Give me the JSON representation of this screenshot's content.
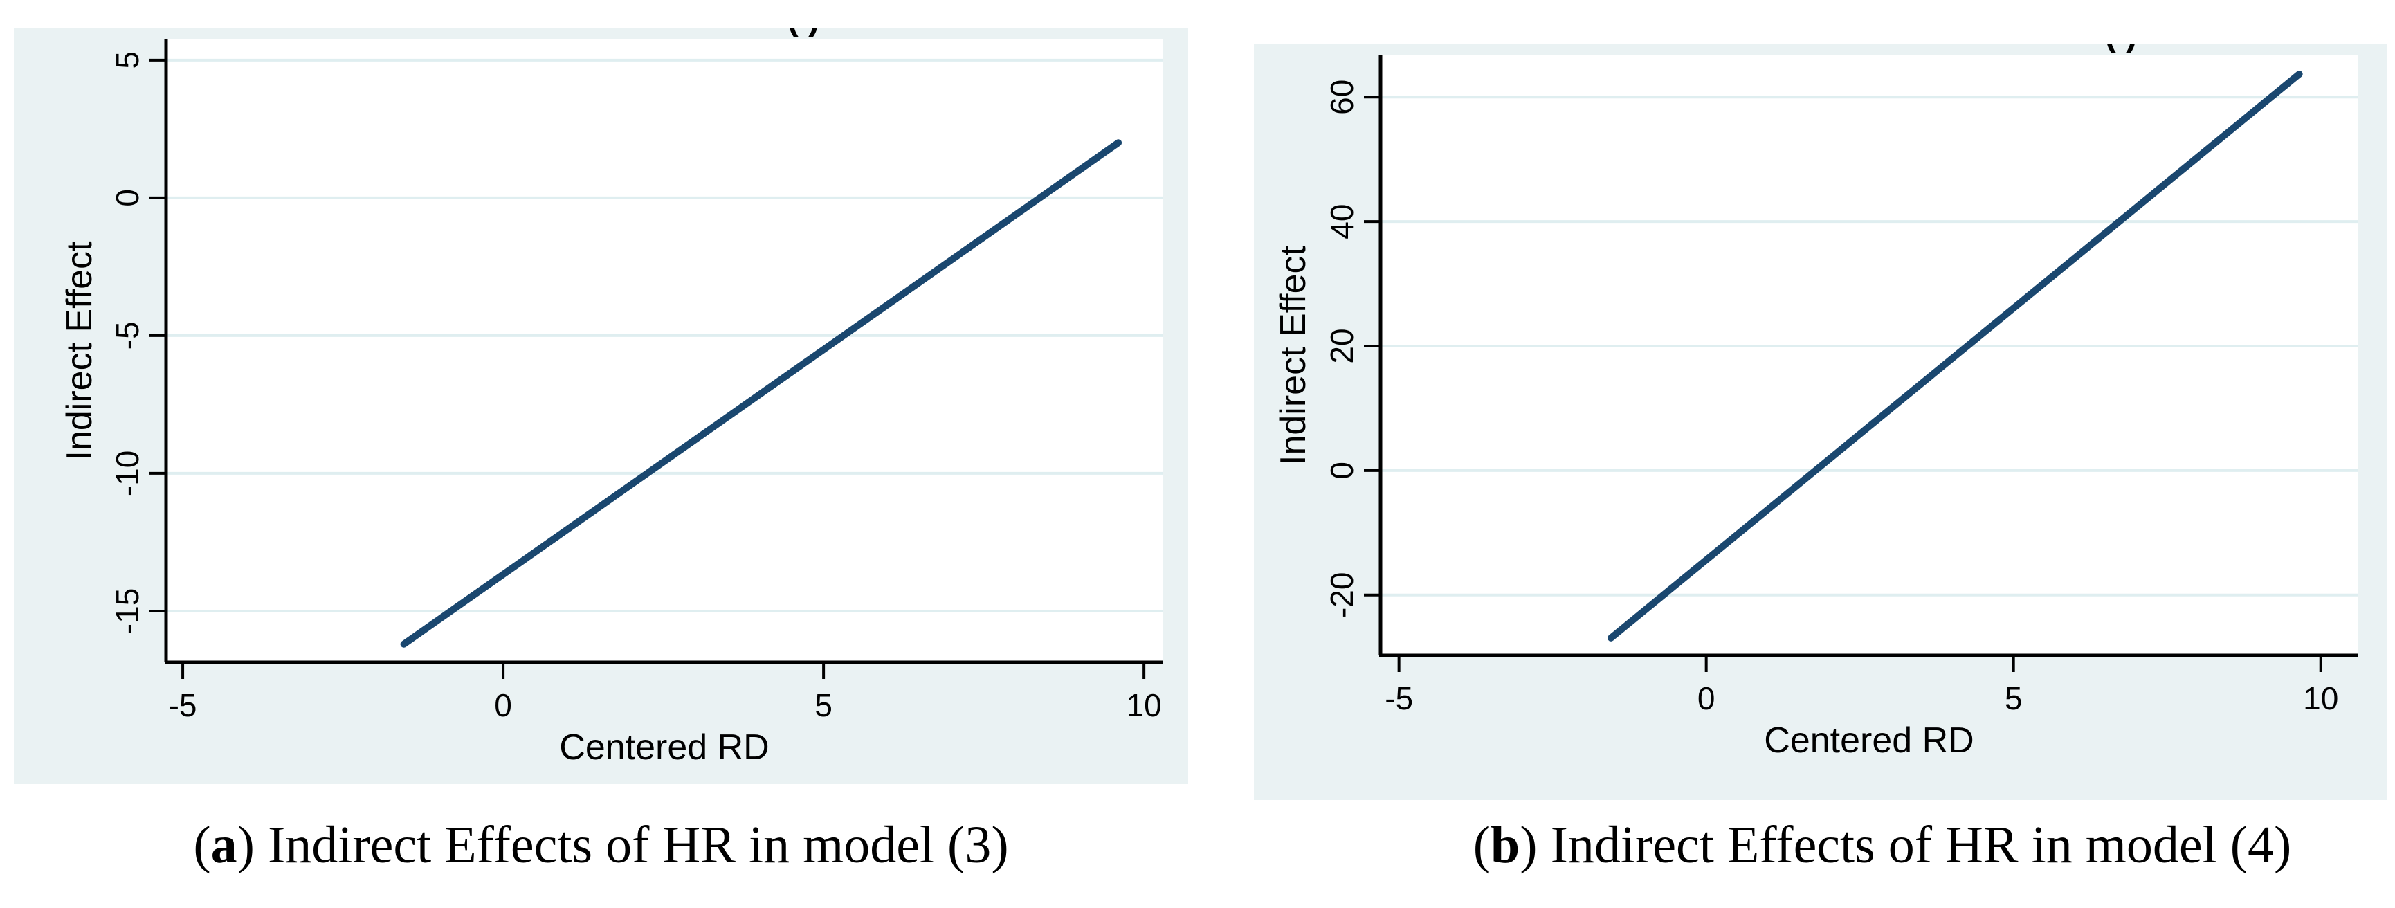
{
  "figure": {
    "captions": [
      {
        "open": "(",
        "letter": "a",
        "rest": ") Indirect Effects of HR in model (3)"
      },
      {
        "open": "(",
        "letter": "b",
        "rest": ") Indirect Effects of HR in model (4)"
      }
    ]
  },
  "colors": {
    "page_bg": "#ffffff",
    "panel_bg": "#eaf2f3",
    "plot_bg": "#ffffff",
    "gridline": "#dfeef0",
    "axis": "#000000",
    "line": "#1a476f",
    "clipped_title_fragment": "#1a476f"
  },
  "chart_data": [
    {
      "type": "line",
      "title_fragment": "( )",
      "xlabel": "Centered RD",
      "ylabel": "Indirect Effect",
      "x_ticks": [
        -5,
        0,
        5,
        10
      ],
      "y_ticks": [
        5,
        0,
        -5,
        -10,
        -15
      ],
      "xlim": [
        -5.26,
        10.29
      ],
      "ylim": [
        -16.86,
        5.75
      ],
      "grid": "horizontal",
      "legend": "none",
      "series": [
        {
          "name": "Indirect Effect of HR, model (3)",
          "x": [
            -1.55,
            9.6
          ],
          "y": [
            -16.2,
            2.0
          ]
        }
      ]
    },
    {
      "type": "line",
      "title_fragment": "(  )",
      "xlabel": "Centered RD",
      "ylabel": "Indirect Effect",
      "x_ticks": [
        -5,
        0,
        5,
        10
      ],
      "y_ticks": [
        60,
        40,
        20,
        0,
        -20
      ],
      "xlim": [
        -5.3,
        10.6
      ],
      "ylim": [
        -29.7,
        66.7
      ],
      "grid": "horizontal",
      "legend": "none",
      "series": [
        {
          "name": "Indirect Effect of HR, model (4)",
          "x": [
            -1.55,
            9.65
          ],
          "y": [
            -26.9,
            63.7
          ]
        }
      ]
    }
  ]
}
